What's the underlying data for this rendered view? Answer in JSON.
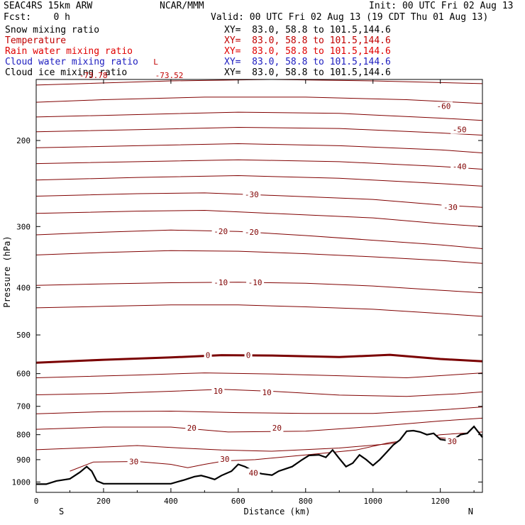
{
  "header": {
    "model": "SEAC4RS 15km ARW",
    "org": "NCAR/MMM",
    "init": "Init: 00 UTC Fri 02 Aug 13",
    "fcst": "Fcst:    0 h",
    "valid": "Valid: 00 UTC Fri 02 Aug 13 (19 CDT Thu 01 Aug 13)"
  },
  "fields": [
    {
      "name": "Snow mixing ratio",
      "xy": "XY=  83.0, 58.8 to 101.5,144.6",
      "color": "#000000",
      "xy_color": "#000000"
    },
    {
      "name": "Temperature",
      "xy": "XY=  83.0, 58.8 to 101.5,144.6",
      "color": "#c00000",
      "xy_color": "#c00000"
    },
    {
      "name": "Rain water mixing ratio",
      "xy": "XY=  83.0, 58.8 to 101.5,144.6",
      "color": "#e00000",
      "xy_color": "#e00000"
    },
    {
      "name": "Cloud water mixing ratio",
      "xy": "XY=  83.0, 58.8 to 101.5,144.6",
      "color": "#2020c0",
      "xy_color": "#2020c0"
    },
    {
      "name": "Cloud ice mixing ratio",
      "xy": "XY=  83.0, 58.8 to 101.5,144.6",
      "color": "#000000",
      "xy_color": "#000000"
    }
  ],
  "chart_data": {
    "type": "line",
    "xlabel": "Distance (km)",
    "ylabel": "Pressure (hPa)",
    "xlim": [
      0,
      1325
    ],
    "ylim": [
      1050,
      150
    ],
    "y_scale": "log",
    "xticks": [
      0,
      200,
      400,
      600,
      800,
      1000,
      1200
    ],
    "yticks": [
      200,
      300,
      400,
      500,
      600,
      700,
      800,
      900,
      1000
    ],
    "x_end_labels": {
      "left": "S",
      "right": "N"
    },
    "colors": {
      "isotherm": "#800000",
      "freezing": "#7a0000",
      "terrain": "#000000"
    },
    "isotherms": [
      {
        "temp": -70,
        "points": [
          [
            0,
            154
          ],
          [
            400,
            151
          ],
          [
            700,
            150
          ],
          [
            1000,
            151
          ],
          [
            1325,
            153
          ]
        ]
      },
      {
        "temp": -60,
        "points": [
          [
            0,
            167
          ],
          [
            200,
            165
          ],
          [
            500,
            163
          ],
          [
            800,
            163
          ],
          [
            1100,
            165
          ],
          [
            1325,
            168
          ]
        ]
      },
      {
        "temp": -55,
        "points": [
          [
            0,
            179
          ],
          [
            300,
            177
          ],
          [
            600,
            175
          ],
          [
            900,
            176
          ],
          [
            1200,
            180
          ],
          [
            1325,
            182
          ]
        ]
      },
      {
        "temp": -50,
        "points": [
          [
            0,
            192
          ],
          [
            300,
            190
          ],
          [
            600,
            188
          ],
          [
            900,
            189
          ],
          [
            1200,
            193
          ],
          [
            1325,
            195
          ]
        ]
      },
      {
        "temp": -45,
        "points": [
          [
            0,
            207
          ],
          [
            300,
            205
          ],
          [
            600,
            203
          ],
          [
            900,
            205
          ],
          [
            1200,
            209
          ],
          [
            1325,
            212
          ]
        ]
      },
      {
        "temp": -40,
        "points": [
          [
            0,
            223
          ],
          [
            300,
            221
          ],
          [
            600,
            219
          ],
          [
            900,
            221
          ],
          [
            1200,
            226
          ],
          [
            1325,
            229
          ]
        ]
      },
      {
        "temp": -35,
        "points": [
          [
            0,
            241
          ],
          [
            300,
            238
          ],
          [
            600,
            236
          ],
          [
            900,
            239
          ],
          [
            1200,
            245
          ],
          [
            1325,
            248
          ]
        ]
      },
      {
        "temp": -30,
        "points": [
          [
            0,
            260
          ],
          [
            300,
            257
          ],
          [
            500,
            256
          ],
          [
            700,
            259
          ],
          [
            1000,
            264
          ],
          [
            1200,
            271
          ],
          [
            1325,
            274
          ]
        ]
      },
      {
        "temp": -25,
        "points": [
          [
            0,
            282
          ],
          [
            300,
            279
          ],
          [
            500,
            278
          ],
          [
            700,
            282
          ],
          [
            1000,
            288
          ],
          [
            1200,
            296
          ],
          [
            1325,
            300
          ]
        ]
      },
      {
        "temp": -20,
        "points": [
          [
            0,
            312
          ],
          [
            200,
            308
          ],
          [
            400,
            305
          ],
          [
            600,
            307
          ],
          [
            800,
            313
          ],
          [
            1000,
            320
          ],
          [
            1200,
            327
          ],
          [
            1325,
            333
          ]
        ]
      },
      {
        "temp": -15,
        "points": [
          [
            0,
            343
          ],
          [
            200,
            339
          ],
          [
            400,
            336
          ],
          [
            600,
            337
          ],
          [
            800,
            341
          ],
          [
            1000,
            346
          ],
          [
            1200,
            352
          ],
          [
            1325,
            357
          ]
        ]
      },
      {
        "temp": -10,
        "points": [
          [
            0,
            396
          ],
          [
            200,
            393
          ],
          [
            400,
            391
          ],
          [
            600,
            390
          ],
          [
            800,
            392
          ],
          [
            1000,
            397
          ],
          [
            1200,
            405
          ],
          [
            1325,
            410
          ]
        ]
      },
      {
        "temp": -5,
        "points": [
          [
            0,
            440
          ],
          [
            200,
            437
          ],
          [
            400,
            434
          ],
          [
            600,
            434
          ],
          [
            800,
            438
          ],
          [
            1000,
            443
          ],
          [
            1200,
            452
          ],
          [
            1325,
            458
          ]
        ]
      },
      {
        "temp": 0,
        "points": [
          [
            0,
            570
          ],
          [
            200,
            562
          ],
          [
            400,
            556
          ],
          [
            550,
            550
          ],
          [
            700,
            551
          ],
          [
            900,
            555
          ],
          [
            1050,
            549
          ],
          [
            1200,
            560
          ],
          [
            1325,
            566
          ]
        ]
      },
      {
        "temp": 5,
        "points": [
          [
            0,
            612
          ],
          [
            300,
            604
          ],
          [
            500,
            598
          ],
          [
            700,
            601
          ],
          [
            900,
            606
          ],
          [
            1100,
            612
          ],
          [
            1325,
            598
          ]
        ]
      },
      {
        "temp": 10,
        "points": [
          [
            0,
            663
          ],
          [
            200,
            659
          ],
          [
            400,
            652
          ],
          [
            550,
            646
          ],
          [
            700,
            652
          ],
          [
            900,
            664
          ],
          [
            1100,
            668
          ],
          [
            1250,
            660
          ],
          [
            1325,
            654
          ]
        ]
      },
      {
        "temp": 15,
        "points": [
          [
            0,
            725
          ],
          [
            200,
            718
          ],
          [
            400,
            716
          ],
          [
            600,
            721
          ],
          [
            800,
            724
          ],
          [
            1000,
            724
          ],
          [
            1200,
            712
          ],
          [
            1325,
            702
          ]
        ]
      },
      {
        "temp": 20,
        "points": [
          [
            0,
            780
          ],
          [
            200,
            772
          ],
          [
            400,
            772
          ],
          [
            570,
            790
          ],
          [
            800,
            787
          ],
          [
            1000,
            770
          ],
          [
            1200,
            750
          ],
          [
            1325,
            740
          ]
        ]
      },
      {
        "temp": 25,
        "points": [
          [
            0,
            859
          ],
          [
            200,
            848
          ],
          [
            300,
            842
          ],
          [
            400,
            850
          ],
          [
            550,
            860
          ],
          [
            700,
            865
          ],
          [
            900,
            852
          ],
          [
            1050,
            835
          ],
          [
            1200,
            800
          ],
          [
            1325,
            790
          ]
        ]
      },
      {
        "temp": 30,
        "points": [
          [
            100,
            950
          ],
          [
            170,
            910
          ],
          [
            300,
            908
          ],
          [
            400,
            920
          ],
          [
            450,
            935
          ],
          [
            500,
            920
          ],
          [
            560,
            905
          ],
          [
            650,
            900
          ],
          [
            800,
            880
          ],
          [
            950,
            860
          ],
          [
            1050,
            830
          ],
          [
            1180,
            810
          ],
          [
            1280,
            820
          ]
        ]
      }
    ],
    "freezing_level_labels": [
      {
        "x": 510,
        "p": 550,
        "text": "0"
      },
      {
        "x": 630,
        "p": 550,
        "text": "0"
      }
    ],
    "contour_labels": [
      {
        "x": 640,
        "p": 258,
        "text": "-30"
      },
      {
        "x": 1230,
        "p": 274,
        "text": "-30"
      },
      {
        "x": 548,
        "p": 307,
        "text": "-20"
      },
      {
        "x": 640,
        "p": 308,
        "text": "-20"
      },
      {
        "x": 548,
        "p": 390,
        "text": "-10"
      },
      {
        "x": 650,
        "p": 390,
        "text": "-10"
      },
      {
        "x": 1210,
        "p": 170,
        "text": "-60"
      },
      {
        "x": 1257,
        "p": 190,
        "text": "-50"
      },
      {
        "x": 1257,
        "p": 226,
        "text": "-40"
      },
      {
        "x": 540,
        "p": 651,
        "text": "10"
      },
      {
        "x": 685,
        "p": 655,
        "text": "10"
      },
      {
        "x": 462,
        "p": 774,
        "text": "20"
      },
      {
        "x": 715,
        "p": 775,
        "text": "20"
      },
      {
        "x": 290,
        "p": 908,
        "text": "30"
      },
      {
        "x": 560,
        "p": 898,
        "text": "30"
      },
      {
        "x": 1235,
        "p": 826,
        "text": "30"
      },
      {
        "x": 645,
        "p": 957,
        "text": "40"
      }
    ],
    "extrema_labels": [
      {
        "x": 355,
        "p": 138,
        "text": "L"
      },
      {
        "x": 395,
        "p": 147,
        "text": "-73.52"
      },
      {
        "x": 170,
        "p": 147,
        "text": "-73.78"
      }
    ],
    "terrain": [
      [
        0,
        1010
      ],
      [
        30,
        1010
      ],
      [
        60,
        995
      ],
      [
        100,
        985
      ],
      [
        130,
        955
      ],
      [
        150,
        930
      ],
      [
        165,
        950
      ],
      [
        180,
        995
      ],
      [
        200,
        1008
      ],
      [
        300,
        1008
      ],
      [
        400,
        1008
      ],
      [
        440,
        990
      ],
      [
        470,
        975
      ],
      [
        490,
        970
      ],
      [
        510,
        978
      ],
      [
        530,
        988
      ],
      [
        550,
        970
      ],
      [
        580,
        950
      ],
      [
        600,
        920
      ],
      [
        620,
        930
      ],
      [
        650,
        955
      ],
      [
        670,
        962
      ],
      [
        700,
        968
      ],
      [
        720,
        950
      ],
      [
        760,
        930
      ],
      [
        790,
        900
      ],
      [
        810,
        882
      ],
      [
        840,
        880
      ],
      [
        860,
        890
      ],
      [
        880,
        860
      ],
      [
        900,
        895
      ],
      [
        920,
        930
      ],
      [
        940,
        915
      ],
      [
        960,
        880
      ],
      [
        980,
        900
      ],
      [
        1000,
        925
      ],
      [
        1020,
        900
      ],
      [
        1040,
        870
      ],
      [
        1060,
        840
      ],
      [
        1080,
        820
      ],
      [
        1100,
        787
      ],
      [
        1120,
        785
      ],
      [
        1140,
        790
      ],
      [
        1160,
        800
      ],
      [
        1180,
        795
      ],
      [
        1200,
        818
      ],
      [
        1220,
        822
      ],
      [
        1240,
        818
      ],
      [
        1260,
        800
      ],
      [
        1280,
        795
      ],
      [
        1300,
        770
      ],
      [
        1325,
        810
      ]
    ]
  }
}
